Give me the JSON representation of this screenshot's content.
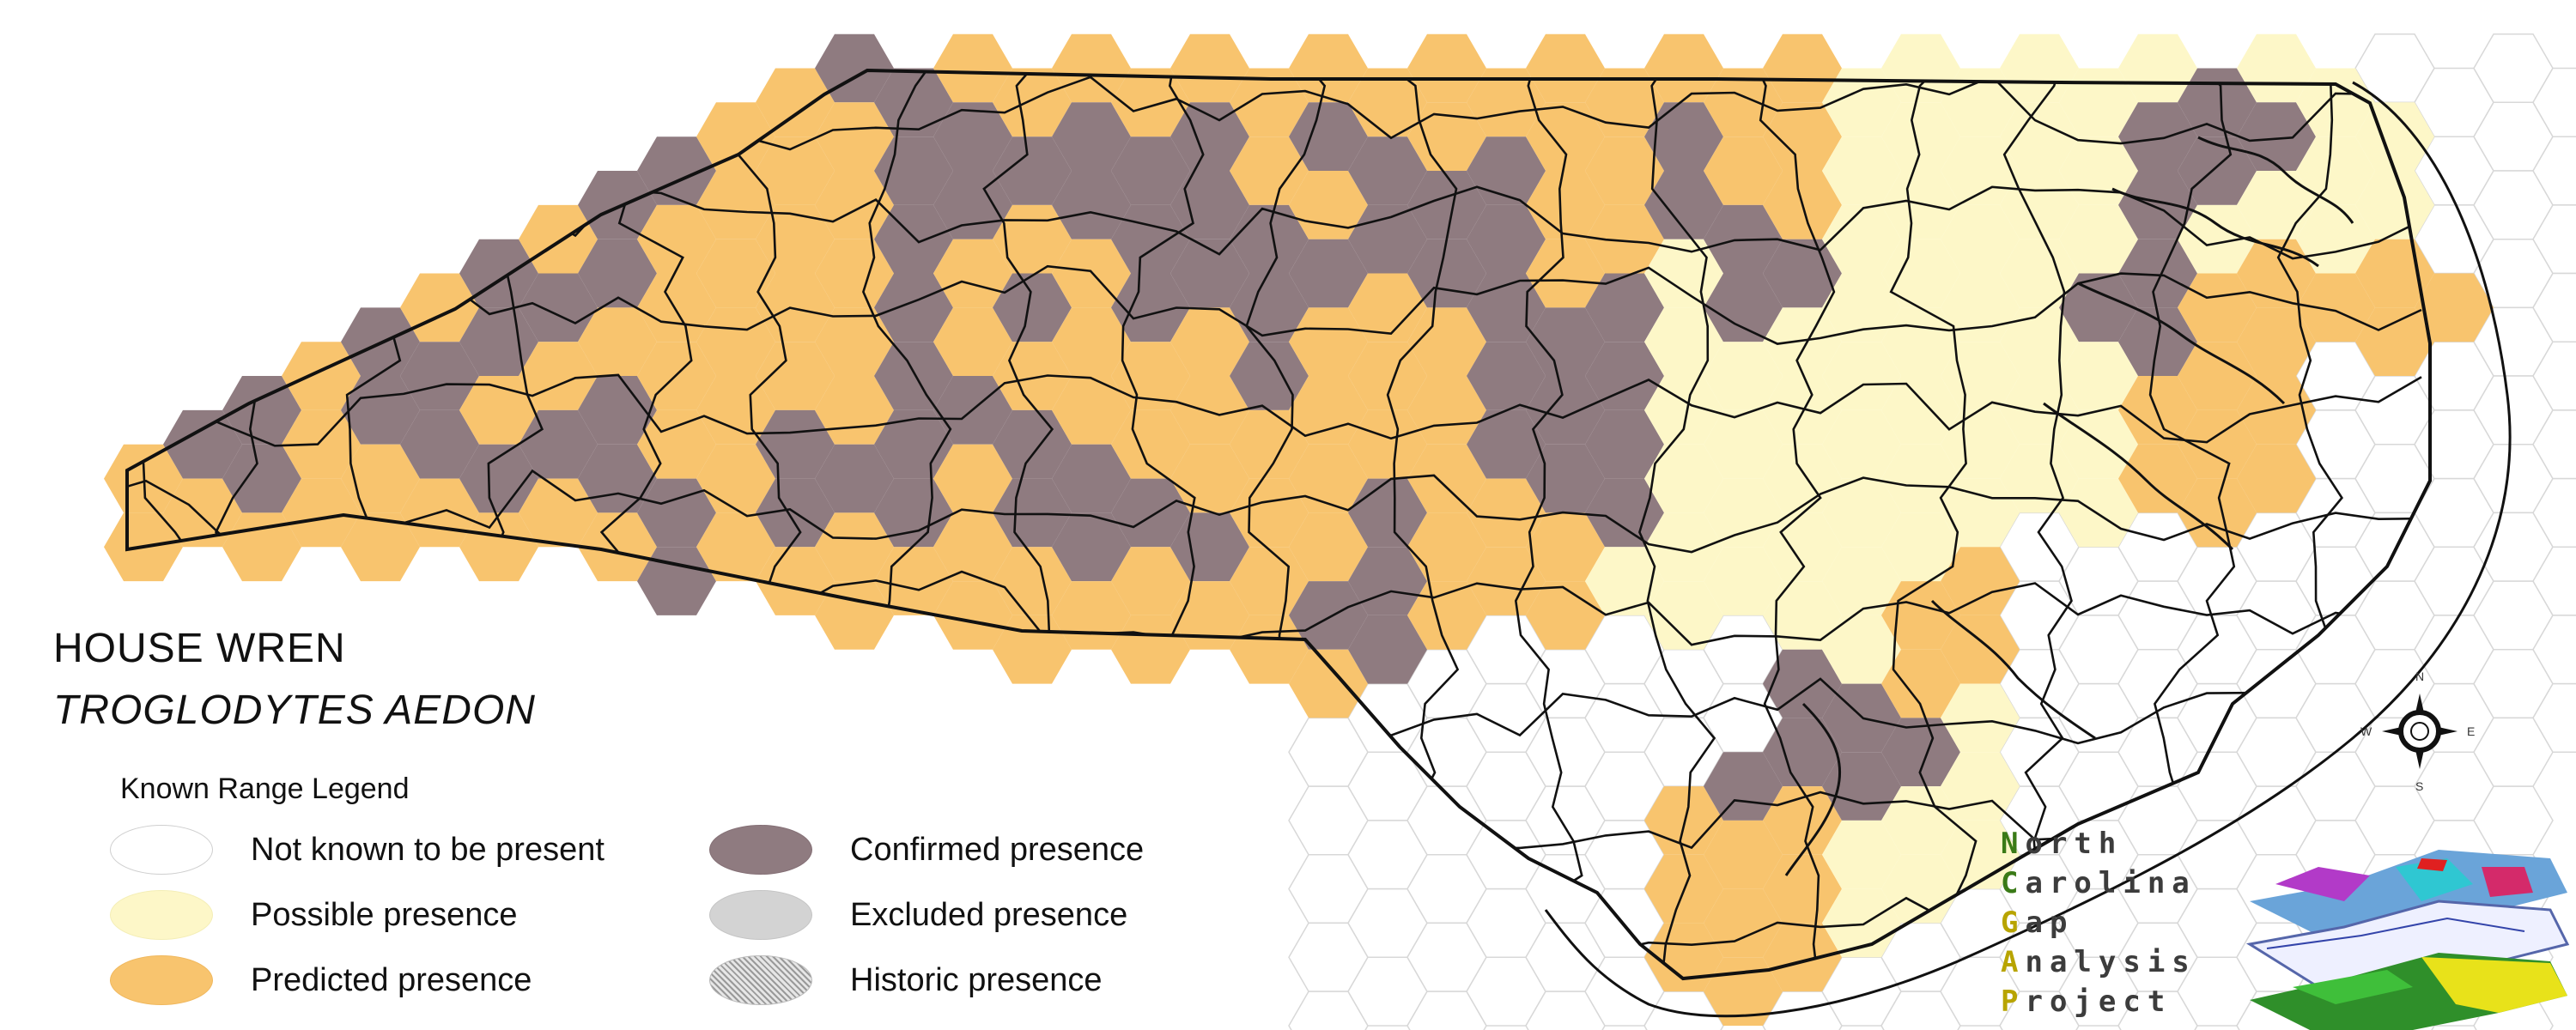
{
  "title": {
    "common_name": "HOUSE WREN",
    "scientific_name": "TROGLODYTES AEDON"
  },
  "legend": {
    "heading": "Known Range Legend",
    "items": [
      {
        "key": "none",
        "label": "Not known to be present",
        "color": "#ffffff"
      },
      {
        "key": "possible",
        "label": "Possible presence",
        "color": "#fdf7c8"
      },
      {
        "key": "predicted",
        "label": "Predicted presence",
        "color": "#f8c46e"
      },
      {
        "key": "confirmed",
        "label": "Confirmed presence",
        "color": "#8f7b80"
      },
      {
        "key": "excluded",
        "label": "Excluded presence",
        "color": "#d3d3d3"
      },
      {
        "key": "historic",
        "label": "Historic presence",
        "color": "#aaaaaa"
      }
    ]
  },
  "compass": {
    "n": "N",
    "s": "S",
    "e": "E",
    "w": "W"
  },
  "logo": {
    "lines": [
      {
        "initial": "N",
        "rest": "orth"
      },
      {
        "initial": "C",
        "rest": "arolina"
      },
      {
        "initial": "G",
        "rest": "ap"
      },
      {
        "initial": "A",
        "rest": "nalysis"
      },
      {
        "initial": "P",
        "rest": "roject"
      }
    ]
  },
  "map": {
    "state": "North Carolina",
    "statewide_presence": "predicted",
    "regions": [
      {
        "name": "mountains-west",
        "presence": "predicted"
      },
      {
        "name": "piedmont",
        "presence": "predicted"
      },
      {
        "name": "coastal-plain",
        "presence": "possible"
      },
      {
        "name": "southeast-coast",
        "presence": "none"
      }
    ]
  }
}
